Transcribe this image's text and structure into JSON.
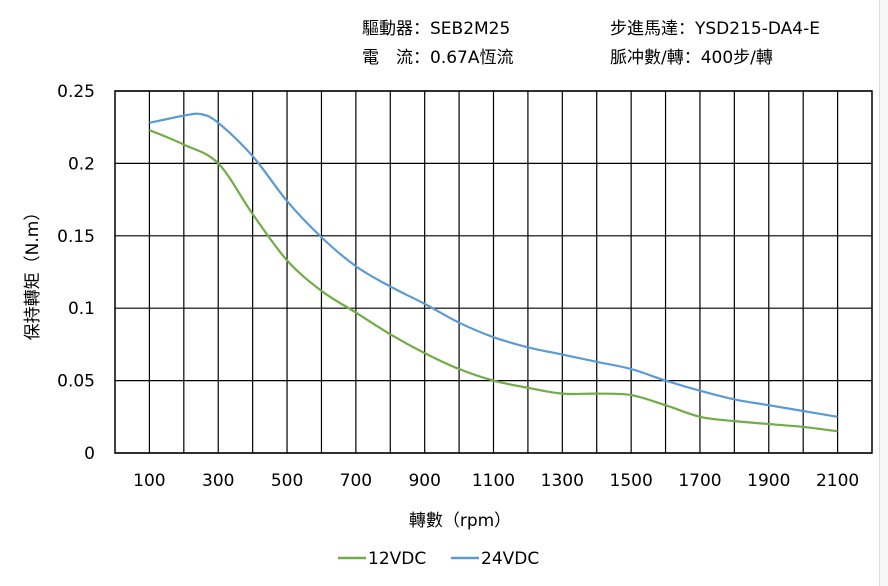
{
  "header": {
    "driver_label": "驅動器：",
    "driver_value": "SEB2M25",
    "current_label": "電　流：",
    "current_value": "0.67A恆流",
    "motor_label": "步進馬達：",
    "motor_value": "YSD215-DA4-E",
    "pulse_label": "脈冲數/轉：",
    "pulse_value": "400步/轉"
  },
  "chart_data": {
    "type": "line",
    "xlabel": "轉數（rpm）",
    "ylabel": "保持轉矩（N.m）",
    "xlim": [
      0,
      2200
    ],
    "ylim": [
      0,
      0.25
    ],
    "x_ticks": [
      "100",
      "300",
      "500",
      "700",
      "900",
      "1100",
      "1300",
      "1500",
      "1700",
      "1900",
      "2100"
    ],
    "x_tick_values": [
      100,
      300,
      500,
      700,
      900,
      1100,
      1300,
      1500,
      1700,
      1900,
      2100
    ],
    "y_ticks": [
      "0",
      "0.05",
      "0.1",
      "0.15",
      "0.2",
      "0.25"
    ],
    "y_tick_values": [
      0,
      0.05,
      0.1,
      0.15,
      0.2,
      0.25
    ],
    "grid": true,
    "legend_position": "bottom",
    "series": [
      {
        "name": "12VDC",
        "color": "#70ad47",
        "x": [
          100,
          200,
          300,
          400,
          500,
          600,
          700,
          800,
          900,
          1000,
          1100,
          1200,
          1300,
          1400,
          1500,
          1600,
          1700,
          1800,
          1900,
          2000,
          2100
        ],
        "y": [
          0.223,
          0.213,
          0.2,
          0.165,
          0.133,
          0.112,
          0.097,
          0.082,
          0.069,
          0.058,
          0.05,
          0.045,
          0.041,
          0.041,
          0.04,
          0.033,
          0.025,
          0.022,
          0.02,
          0.018,
          0.015
        ]
      },
      {
        "name": "24VDC",
        "color": "#5b9bd5",
        "x": [
          100,
          200,
          250,
          300,
          400,
          500,
          600,
          700,
          800,
          900,
          1000,
          1100,
          1200,
          1300,
          1400,
          1500,
          1600,
          1700,
          1800,
          1900,
          2000,
          2100
        ],
        "y": [
          0.228,
          0.233,
          0.234,
          0.228,
          0.205,
          0.174,
          0.149,
          0.129,
          0.115,
          0.103,
          0.09,
          0.08,
          0.073,
          0.068,
          0.063,
          0.058,
          0.05,
          0.043,
          0.037,
          0.033,
          0.029,
          0.025
        ]
      }
    ]
  }
}
